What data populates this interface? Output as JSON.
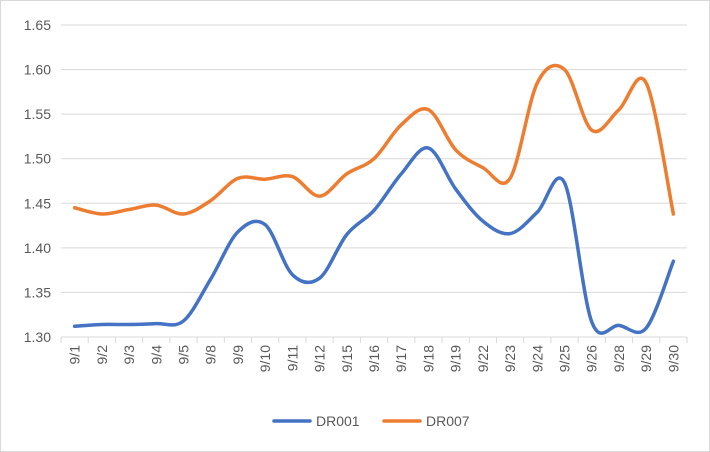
{
  "chart_data": {
    "type": "line",
    "title": "",
    "xlabel": "",
    "ylabel": "",
    "categories": [
      "9/1",
      "9/2",
      "9/3",
      "9/4",
      "9/5",
      "9/8",
      "9/9",
      "9/10",
      "9/11",
      "9/12",
      "9/15",
      "9/16",
      "9/17",
      "9/18",
      "9/19",
      "9/22",
      "9/23",
      "9/24",
      "9/25",
      "9/26",
      "9/28",
      "9/29",
      "9/30"
    ],
    "ylim": [
      1.3,
      1.65
    ],
    "yticks": [
      "1.30",
      "1.35",
      "1.40",
      "1.45",
      "1.50",
      "1.55",
      "1.60",
      "1.65"
    ],
    "grid": true,
    "legend": "bottom",
    "smooth": true,
    "series": [
      {
        "name": "DR001",
        "color": "#4472C4",
        "values": [
          1.312,
          1.314,
          1.314,
          1.315,
          1.318,
          1.365,
          1.418,
          1.426,
          1.37,
          1.366,
          1.415,
          1.442,
          1.483,
          1.512,
          1.466,
          1.43,
          1.416,
          1.44,
          1.473,
          1.317,
          1.313,
          1.31,
          1.385
        ]
      },
      {
        "name": "DR007",
        "color": "#ED7D31",
        "values": [
          1.445,
          1.438,
          1.443,
          1.448,
          1.438,
          1.453,
          1.478,
          1.477,
          1.48,
          1.458,
          1.483,
          1.5,
          1.538,
          1.555,
          1.51,
          1.49,
          1.478,
          1.585,
          1.6,
          1.532,
          1.555,
          1.585,
          1.438
        ]
      }
    ]
  }
}
